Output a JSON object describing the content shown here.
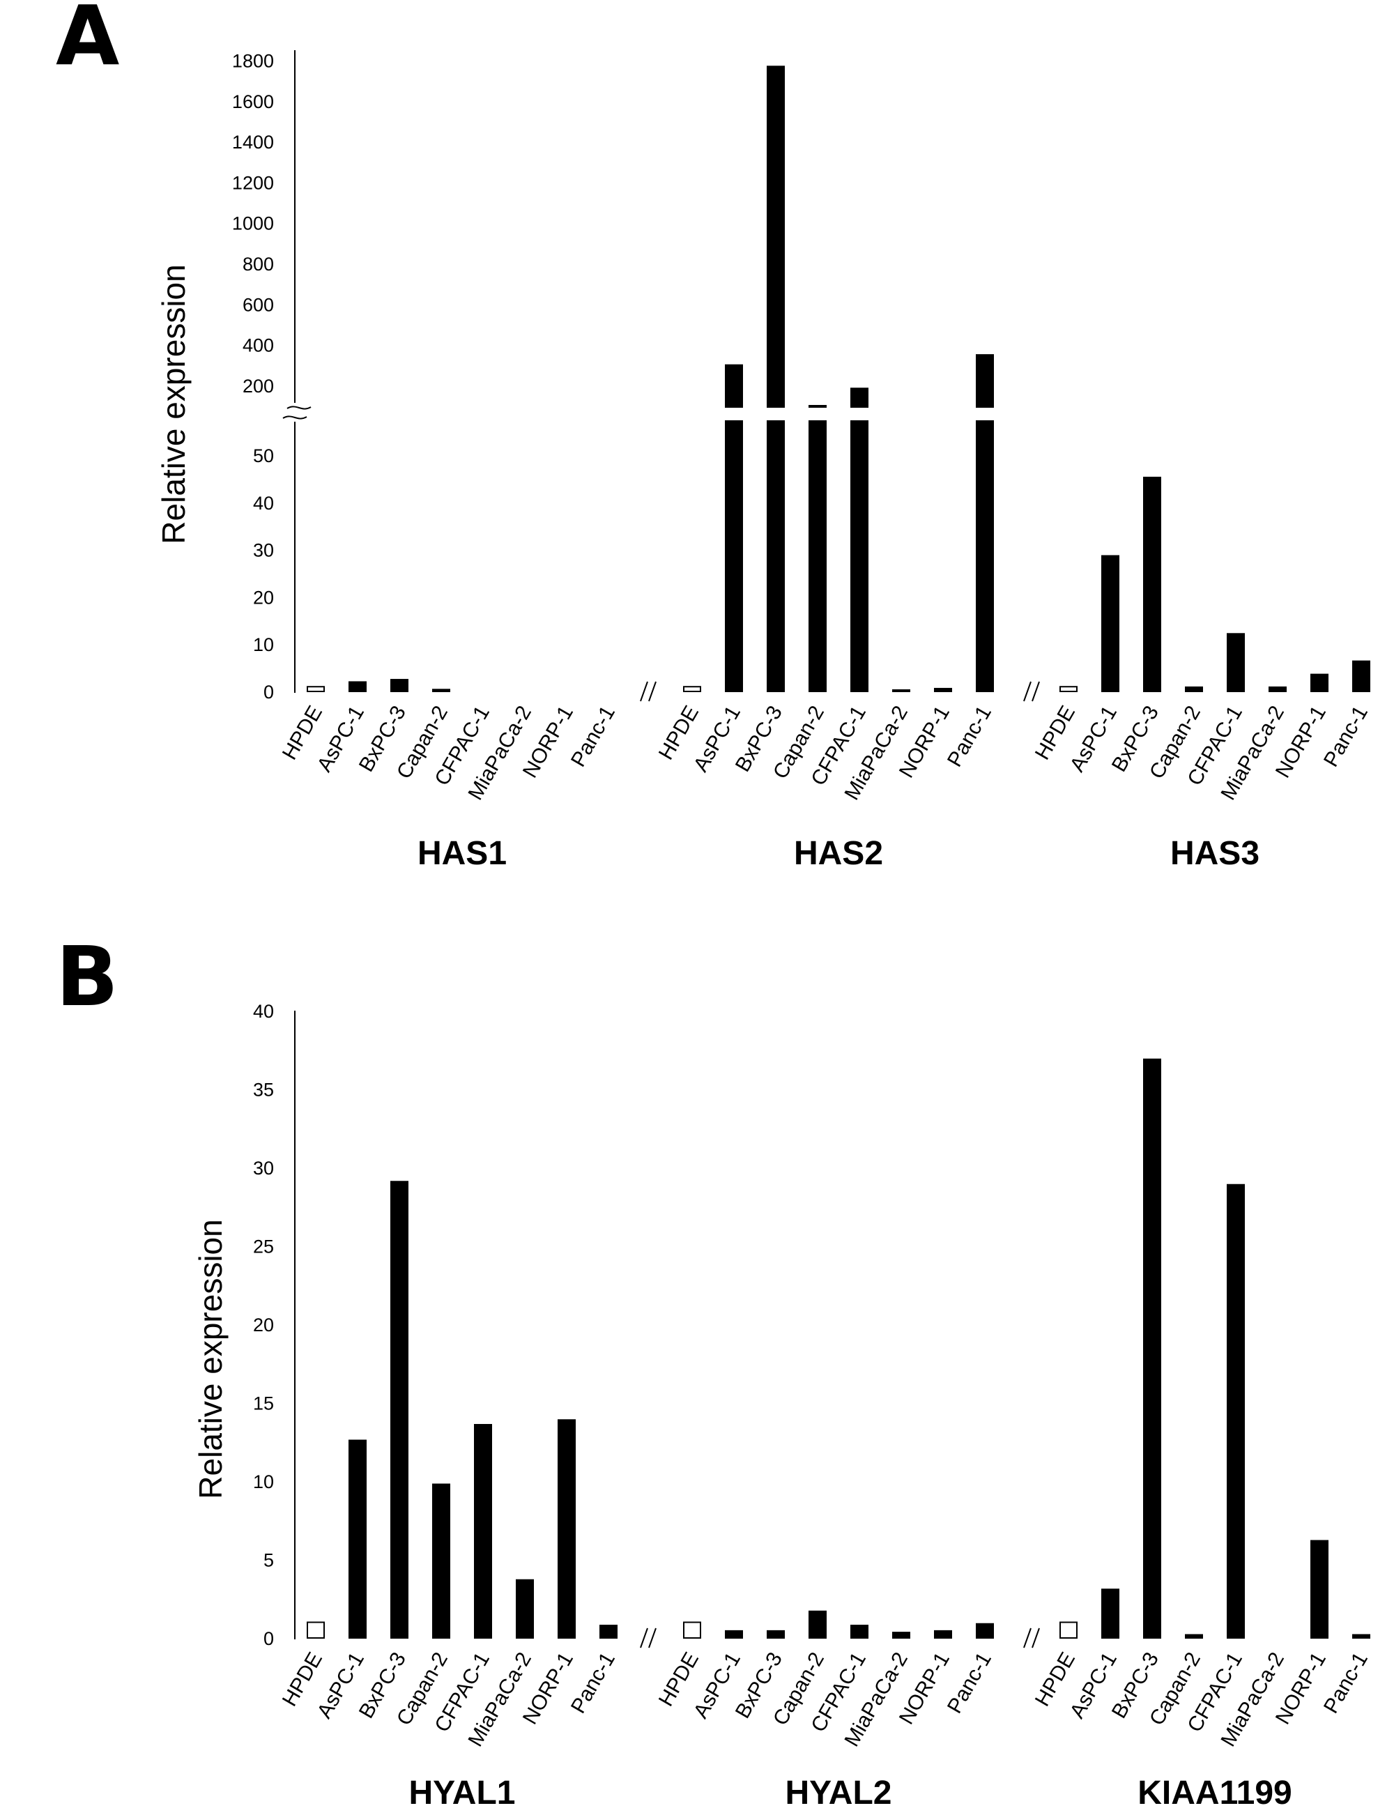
{
  "chart_data": [
    {
      "panel": "A",
      "type": "bar",
      "ylabel": "Relative expression",
      "axis_break": true,
      "y_lower_ticks": [
        "0",
        "10",
        "20",
        "30",
        "40",
        "50"
      ],
      "y_upper_ticks": [
        "200",
        "400",
        "600",
        "800",
        "1000",
        "1200",
        "1400",
        "1600",
        "1800"
      ],
      "ylim_lower": [
        0,
        54
      ],
      "ylim_upper": [
        100,
        1850
      ],
      "categories": [
        "HPDE",
        "AsPC-1",
        "BxPC-3",
        "Capan-2",
        "CFPAC-1",
        "MiaPaCa-2",
        "NORP-1",
        "Panc-1"
      ],
      "groups": [
        {
          "name": "HAS1",
          "values": [
            1.0,
            2.0,
            2.5,
            0.4,
            0.0,
            0.0,
            0.0,
            0.0
          ]
        },
        {
          "name": "HAS2",
          "values": [
            1.0,
            300,
            1770,
            100,
            185,
            0.3,
            0.6,
            350
          ]
        },
        {
          "name": "HAS3",
          "values": [
            1.0,
            28.7,
            45.3,
            0.9,
            12.2,
            0.9,
            3.6,
            6.4
          ]
        }
      ],
      "reference_category": "HPDE",
      "colors": {
        "reference": "#ffffff",
        "bars": "#000000"
      }
    },
    {
      "panel": "B",
      "type": "bar",
      "ylabel": "Relative expression",
      "y_ticks": [
        "0",
        "5",
        "10",
        "15",
        "20",
        "25",
        "30",
        "35",
        "40"
      ],
      "ylim": [
        0,
        40
      ],
      "categories": [
        "HPDE",
        "AsPC-1",
        "BxPC-3",
        "Capan-2",
        "CFPAC-1",
        "MiaPaCa-2",
        "NORP-1",
        "Panc-1"
      ],
      "groups": [
        {
          "name": "HYAL1",
          "values": [
            1.0,
            12.6,
            29.1,
            9.8,
            13.6,
            3.7,
            13.9,
            0.8
          ]
        },
        {
          "name": "HYAL2",
          "values": [
            1.0,
            0.45,
            0.45,
            1.7,
            0.8,
            0.35,
            0.45,
            0.9
          ]
        },
        {
          "name": "KIAA1199",
          "values": [
            1.0,
            3.1,
            36.9,
            0.2,
            28.9,
            0.0,
            6.2,
            0.2
          ]
        }
      ],
      "reference_category": "HPDE",
      "colors": {
        "reference": "#ffffff",
        "bars": "#000000"
      }
    }
  ]
}
